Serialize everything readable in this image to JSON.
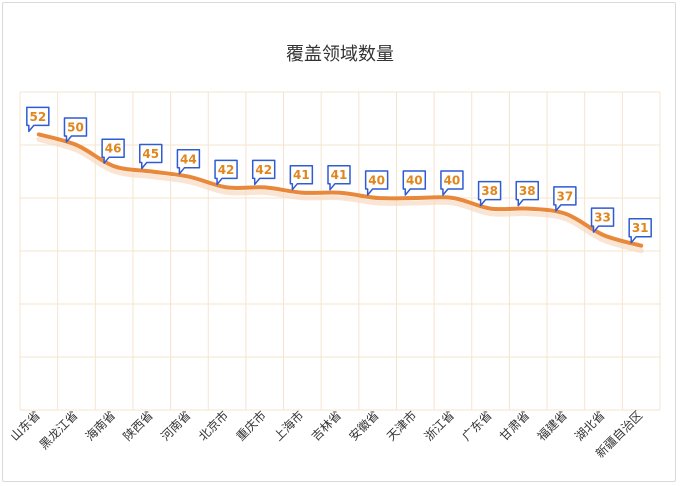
{
  "chart_data": {
    "type": "line",
    "title": "覆盖领域数量",
    "xlabel": "",
    "ylabel": "",
    "categories": [
      "山东省",
      "黑龙江省",
      "海南省",
      "陕西省",
      "河南省",
      "北京市",
      "重庆市",
      "上海市",
      "吉林省",
      "安徽省",
      "天津市",
      "浙江省",
      "广东省",
      "甘肃省",
      "福建省",
      "湖北省",
      "新疆自治区"
    ],
    "series": [
      {
        "values": [
          52,
          50,
          46,
          45,
          44,
          42,
          42,
          41,
          41,
          40,
          40,
          40,
          38,
          38,
          37,
          33,
          31
        ]
      }
    ],
    "ylim": [
      0,
      60
    ],
    "grid": true,
    "legend": "none",
    "colors": {
      "line": "#e8883a",
      "label_text": "#e0861f",
      "label_border": "#2f5bd3",
      "grid": "#f6e4cf"
    }
  }
}
